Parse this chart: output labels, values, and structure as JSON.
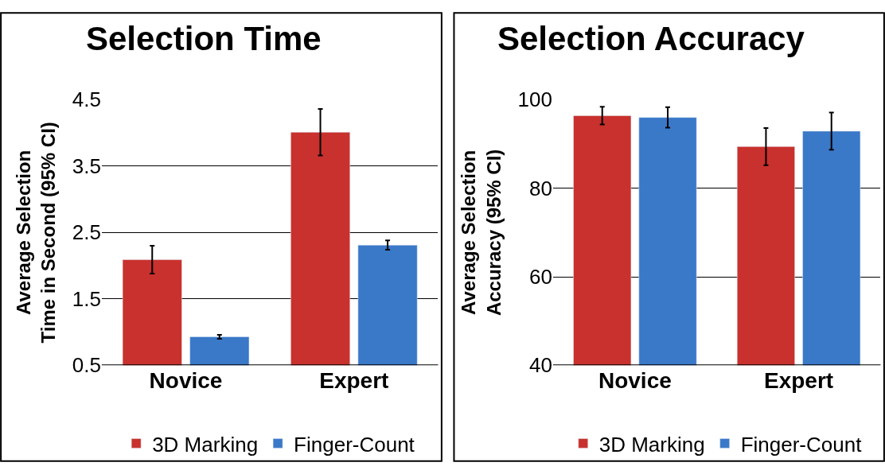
{
  "chart_data": [
    {
      "type": "bar",
      "title": "Selection Time",
      "ylabel": "Average Selection\nTime in Second (95% CI)",
      "categories": [
        "Novice",
        "Expert"
      ],
      "series": [
        {
          "name": "3D Marking",
          "color": "#c8312d",
          "values": [
            2.09,
            4.01
          ],
          "errors": [
            0.21,
            0.35
          ]
        },
        {
          "name": "Finger-Count",
          "color": "#3a78c8",
          "values": [
            0.93,
            2.31
          ],
          "errors": [
            0.03,
            0.07
          ]
        }
      ],
      "ylim": [
        0.5,
        4.5
      ],
      "yticks": [
        0.5,
        1.5,
        2.5,
        3.5,
        4.5
      ],
      "grid": "y",
      "legend": "bottom"
    },
    {
      "type": "bar",
      "title": "Selection Accuracy",
      "ylabel": "Average Selection\nAccuracy (95% CI)",
      "categories": [
        "Novice",
        "Expert"
      ],
      "series": [
        {
          "name": "3D Marking",
          "color": "#c8312d",
          "values": [
            96.4,
            89.4
          ],
          "errors": [
            2.0,
            4.2
          ]
        },
        {
          "name": "Finger-Count",
          "color": "#3a78c8",
          "values": [
            96.0,
            92.9
          ],
          "errors": [
            2.3,
            4.2
          ]
        }
      ],
      "ylim": [
        40,
        100
      ],
      "yticks": [
        40,
        60,
        80,
        100
      ],
      "grid": "y",
      "legend": "bottom"
    }
  ]
}
